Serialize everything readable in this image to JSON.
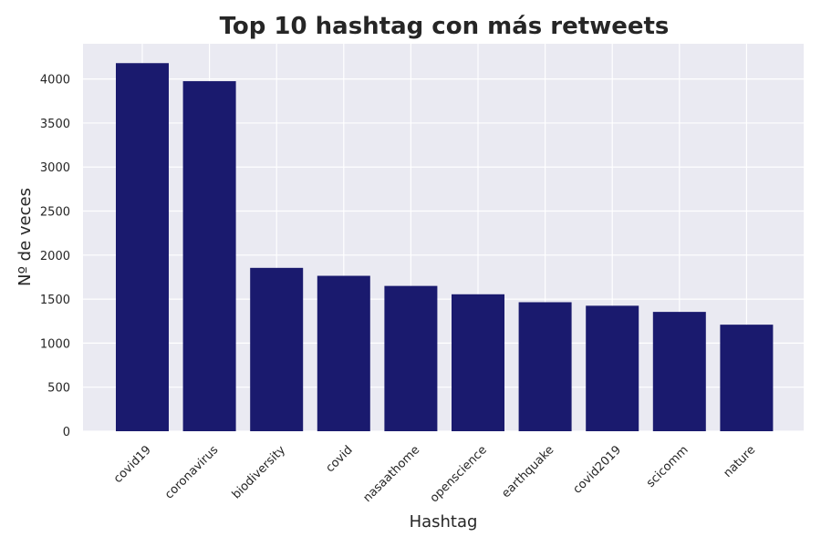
{
  "chart_data": {
    "type": "bar",
    "title": "Top 10 hashtag con más retweets",
    "xlabel": "Hashtag",
    "ylabel": "Nº de veces",
    "categories": [
      "covid19",
      "coronavirus",
      "biodiversity",
      "covid",
      "nasaathome",
      "openscience",
      "earthquake",
      "covid2019",
      "scicomm",
      "nature"
    ],
    "values": [
      4180,
      3975,
      1855,
      1765,
      1650,
      1555,
      1465,
      1425,
      1355,
      1210
    ],
    "ylim": [
      0,
      4400
    ],
    "yticks": [
      0,
      500,
      1000,
      1500,
      2000,
      2500,
      3000,
      3500,
      4000
    ],
    "grid": true,
    "colors": {
      "bar": "#1a1a6e",
      "plot_background": "#eaeaf2",
      "grid": "#ffffff",
      "text": "#262626"
    }
  }
}
